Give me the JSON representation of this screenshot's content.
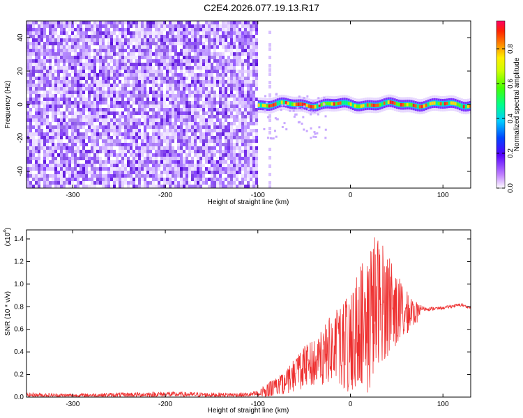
{
  "title": "C2E4.2026.077.19.13.R17",
  "chart_data": [
    {
      "type": "heatmap",
      "xlabel": "Height of straight line (km)",
      "ylabel": "Frequency (Hz)",
      "xlim": [
        -350,
        130
      ],
      "ylim": [
        -50,
        50
      ],
      "xticks": [
        -300,
        -200,
        -100,
        0,
        100
      ],
      "yticks": [
        -40,
        -20,
        0,
        20,
        40
      ],
      "description_series": [
        {
          "name": "noise region",
          "x_range": [
            -350,
            -100
          ],
          "y_range": [
            -50,
            50
          ],
          "normalized_amplitude": 0.1
        },
        {
          "name": "signal band",
          "x_range": [
            -100,
            130
          ],
          "center_frequency": 0,
          "bandwidth": 10,
          "peak_normalized_amplitude": 0.9
        }
      ],
      "colorbar": {
        "label": "Normalized spectral amplitude",
        "range": [
          0.0,
          0.96
        ],
        "ticks": [
          "0.0",
          "0.2",
          "0.4",
          "0.6",
          "0.8"
        ]
      }
    },
    {
      "type": "line",
      "xlabel": "Height of straight line (km)",
      "ylabel": "SNR (10 * v/v)",
      "yscale_label": "(x10",
      "yscale_exp": "4",
      "xlim": [
        -350,
        130
      ],
      "ylim": [
        0,
        1.48
      ],
      "xticks": [
        -300,
        -200,
        -100,
        0,
        100
      ],
      "yticks": [
        "0.0",
        "0.2",
        "0.4",
        "0.6",
        "0.8",
        "1.0",
        "1.2",
        "1.4"
      ],
      "series": [
        {
          "name": "SNR",
          "color": "#ee3030",
          "x": [
            -350,
            -300,
            -250,
            -200,
            -150,
            -110,
            -100,
            -90,
            -80,
            -70,
            -60,
            -50,
            -40,
            -30,
            -20,
            -10,
            0,
            10,
            20,
            25,
            30,
            40,
            50,
            60,
            70,
            80,
            90,
            100,
            110,
            120,
            130
          ],
          "envelope_max": [
            0.04,
            0.03,
            0.04,
            0.05,
            0.04,
            0.04,
            0.06,
            0.12,
            0.18,
            0.22,
            0.35,
            0.45,
            0.5,
            0.6,
            0.75,
            0.8,
            0.95,
            1.15,
            1.35,
            1.48,
            1.45,
            1.3,
            1.1,
            0.95,
            0.85,
            0.8,
            0.8,
            0.8,
            0.82,
            0.83,
            0.8
          ],
          "envelope_min": [
            0.0,
            0.0,
            0.0,
            0.0,
            0.0,
            0.0,
            0.0,
            0.0,
            0.02,
            0.03,
            0.05,
            0.08,
            0.1,
            0.1,
            0.15,
            0.05,
            0.02,
            0.15,
            0.0,
            0.2,
            0.3,
            0.35,
            0.45,
            0.55,
            0.65,
            0.7,
            0.72,
            0.74,
            0.75,
            0.76,
            0.75
          ]
        }
      ]
    }
  ]
}
